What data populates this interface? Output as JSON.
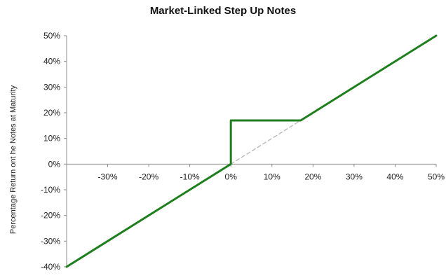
{
  "chart_data": {
    "type": "line",
    "title": "Market-Linked Step Up Notes",
    "xlabel": "",
    "ylabel": "Percentage Return ont he Notes at Maturity",
    "xlim": [
      -0.4,
      0.5
    ],
    "ylim": [
      -0.4,
      0.5
    ],
    "x_ticks": [
      {
        "value": -0.3,
        "label": "-30%"
      },
      {
        "value": -0.2,
        "label": "-20%"
      },
      {
        "value": -0.1,
        "label": "-10%"
      },
      {
        "value": 0.0,
        "label": "0%"
      },
      {
        "value": 0.1,
        "label": "10%"
      },
      {
        "value": 0.2,
        "label": "20%"
      },
      {
        "value": 0.3,
        "label": "30%"
      },
      {
        "value": 0.4,
        "label": "40%"
      },
      {
        "value": 0.5,
        "label": "50%"
      }
    ],
    "y_ticks": [
      {
        "value": 0.5,
        "label": "50%"
      },
      {
        "value": 0.4,
        "label": "40%"
      },
      {
        "value": 0.3,
        "label": "30%"
      },
      {
        "value": 0.2,
        "label": "20%"
      },
      {
        "value": 0.1,
        "label": "10%"
      },
      {
        "value": 0.0,
        "label": "0%"
      },
      {
        "value": -0.1,
        "label": "-10%"
      },
      {
        "value": -0.2,
        "label": "-20%"
      },
      {
        "value": -0.3,
        "label": "-30%"
      },
      {
        "value": -0.4,
        "label": "-40%"
      }
    ],
    "grid": false,
    "legend": "none",
    "series": [
      {
        "style": "solid",
        "color": "#1f7f1f",
        "points": [
          {
            "x": -0.4,
            "y": -0.4
          },
          {
            "x": 0.0,
            "y": 0.0
          },
          {
            "x": 0.0,
            "y": 0.17
          },
          {
            "x": 0.17,
            "y": 0.17
          },
          {
            "x": 0.5,
            "y": 0.5
          }
        ]
      },
      {
        "style": "dashed",
        "color": "#bdbdbd",
        "points": [
          {
            "x": 0.0,
            "y": 0.0
          },
          {
            "x": 0.17,
            "y": 0.17
          }
        ]
      }
    ]
  }
}
